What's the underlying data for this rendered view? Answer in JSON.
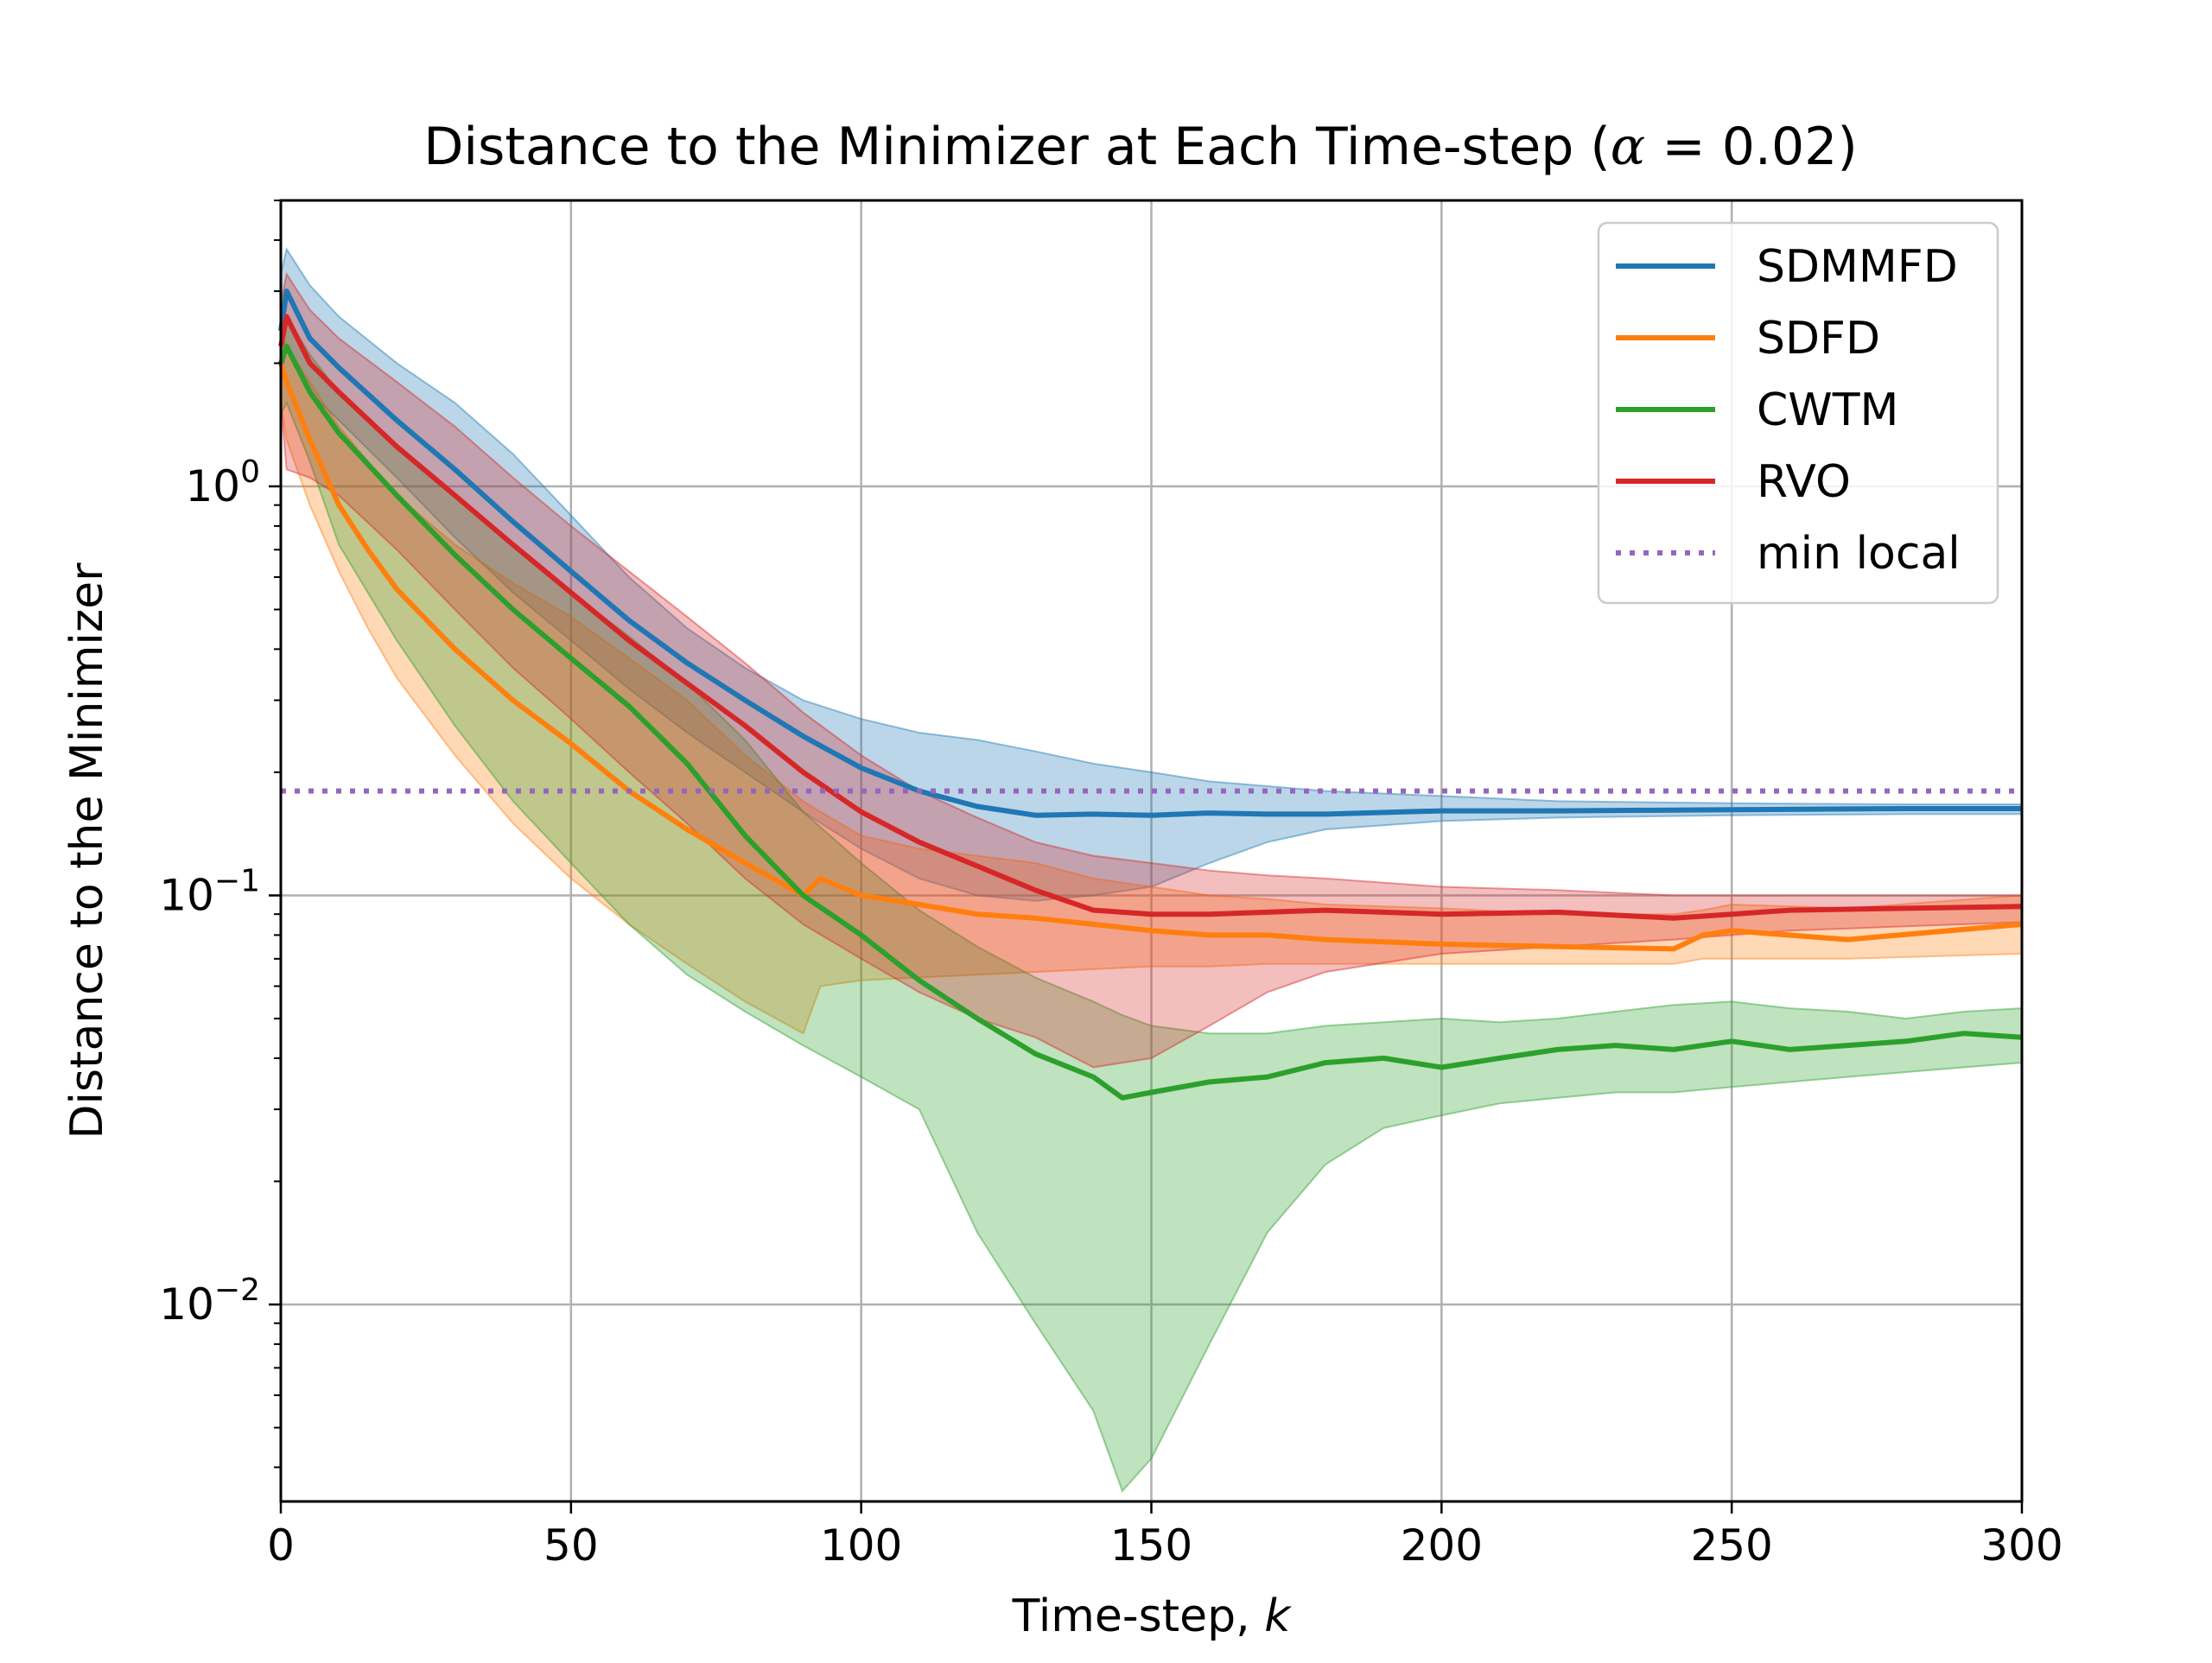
{
  "chart_data": {
    "type": "line",
    "title": "Distance to the Minimizer at Each Time-step (α = 0.02)",
    "title_prefix": "Distance to the Minimizer at Each Time-step (",
    "title_symbol": "α",
    "title_suffix": " = 0.02)",
    "xlabel": "Time-step, k",
    "xlabel_prefix": "Time-step, ",
    "xlabel_symbol": "k",
    "ylabel": "Distance to the Minimizer",
    "xlim": [
      0,
      300
    ],
    "ylim": [
      0.0033,
      5.0
    ],
    "yscale": "log",
    "grid": true,
    "legend_position": "top-right",
    "x_ticks": [
      0,
      50,
      100,
      150,
      200,
      250,
      300
    ],
    "x_tick_labels": [
      "0",
      "50",
      "100",
      "150",
      "200",
      "250",
      "300"
    ],
    "y_ticks": [
      1,
      0.1,
      0.01
    ],
    "y_tick_labels": [
      {
        "base": "10",
        "exp": "0"
      },
      {
        "base": "10",
        "exp": "−1"
      },
      {
        "base": "10",
        "exp": "−2"
      }
    ],
    "series": [
      {
        "name": "SDMMFD",
        "color": "#1f77b4",
        "style": "solid",
        "x": [
          0,
          1,
          5,
          10,
          20,
          30,
          40,
          50,
          60,
          70,
          80,
          90,
          100,
          110,
          120,
          130,
          140,
          150,
          160,
          170,
          180,
          200,
          220,
          250,
          280,
          300
        ],
        "y": [
          2.4,
          3.0,
          2.3,
          1.95,
          1.45,
          1.1,
          0.82,
          0.62,
          0.47,
          0.37,
          0.3,
          0.245,
          0.205,
          0.18,
          0.165,
          0.157,
          0.158,
          0.157,
          0.159,
          0.158,
          0.158,
          0.161,
          0.161,
          0.162,
          0.163,
          0.163
        ],
        "band_upper": [
          3.3,
          3.8,
          3.1,
          2.6,
          2.0,
          1.6,
          1.2,
          0.85,
          0.6,
          0.45,
          0.36,
          0.3,
          0.27,
          0.25,
          0.24,
          0.225,
          0.21,
          0.2,
          0.19,
          0.185,
          0.18,
          0.175,
          0.17,
          0.168,
          0.167,
          0.167
        ],
        "band_lower": [
          1.8,
          2.2,
          1.7,
          1.45,
          1.05,
          0.75,
          0.55,
          0.42,
          0.32,
          0.25,
          0.2,
          0.16,
          0.13,
          0.11,
          0.1,
          0.097,
          0.1,
          0.105,
          0.12,
          0.135,
          0.145,
          0.152,
          0.155,
          0.157,
          0.158,
          0.158
        ]
      },
      {
        "name": "SDFD",
        "color": "#ff7f0e",
        "style": "solid",
        "x": [
          0,
          1,
          5,
          10,
          15,
          20,
          30,
          40,
          50,
          60,
          70,
          80,
          90,
          93,
          100,
          110,
          120,
          130,
          140,
          150,
          160,
          170,
          180,
          200,
          220,
          240,
          245,
          250,
          270,
          300
        ],
        "y": [
          2.0,
          1.8,
          1.3,
          0.9,
          0.7,
          0.56,
          0.4,
          0.3,
          0.235,
          0.18,
          0.145,
          0.12,
          0.1,
          0.11,
          0.1,
          0.095,
          0.09,
          0.088,
          0.085,
          0.082,
          0.08,
          0.08,
          0.078,
          0.076,
          0.075,
          0.074,
          0.08,
          0.082,
          0.078,
          0.085
        ],
        "band_upper": [
          2.4,
          2.2,
          1.8,
          1.4,
          1.15,
          0.95,
          0.72,
          0.58,
          0.48,
          0.38,
          0.3,
          0.22,
          0.17,
          0.16,
          0.14,
          0.13,
          0.125,
          0.12,
          0.11,
          0.105,
          0.1,
          0.098,
          0.095,
          0.093,
          0.09,
          0.09,
          0.092,
          0.095,
          0.093,
          0.1
        ],
        "band_lower": [
          1.6,
          1.3,
          0.9,
          0.62,
          0.45,
          0.34,
          0.22,
          0.15,
          0.11,
          0.085,
          0.068,
          0.055,
          0.046,
          0.06,
          0.062,
          0.063,
          0.064,
          0.065,
          0.066,
          0.067,
          0.067,
          0.068,
          0.068,
          0.068,
          0.068,
          0.068,
          0.07,
          0.07,
          0.07,
          0.072
        ]
      },
      {
        "name": "CWTM",
        "color": "#2ca02c",
        "style": "solid",
        "x": [
          0,
          1,
          5,
          10,
          20,
          30,
          40,
          50,
          60,
          70,
          80,
          90,
          100,
          110,
          120,
          130,
          140,
          145,
          150,
          160,
          170,
          180,
          190,
          200,
          210,
          220,
          230,
          240,
          250,
          260,
          270,
          280,
          290,
          300
        ],
        "y": [
          2.0,
          2.2,
          1.7,
          1.35,
          0.95,
          0.68,
          0.5,
          0.38,
          0.29,
          0.21,
          0.14,
          0.1,
          0.08,
          0.062,
          0.05,
          0.041,
          0.036,
          0.032,
          0.033,
          0.035,
          0.036,
          0.039,
          0.04,
          0.038,
          0.04,
          0.042,
          0.043,
          0.042,
          0.044,
          0.042,
          0.043,
          0.044,
          0.046,
          0.045
        ],
        "band_upper": [
          2.4,
          2.6,
          2.1,
          1.7,
          1.25,
          0.95,
          0.72,
          0.55,
          0.43,
          0.33,
          0.24,
          0.16,
          0.12,
          0.092,
          0.075,
          0.063,
          0.055,
          0.051,
          0.048,
          0.046,
          0.046,
          0.048,
          0.049,
          0.05,
          0.049,
          0.05,
          0.052,
          0.054,
          0.055,
          0.053,
          0.052,
          0.05,
          0.052,
          0.053
        ],
        "band_lower": [
          1.5,
          1.6,
          1.15,
          0.72,
          0.42,
          0.26,
          0.17,
          0.12,
          0.085,
          0.064,
          0.052,
          0.043,
          0.036,
          0.03,
          0.015,
          0.009,
          0.0055,
          0.0035,
          0.0042,
          0.008,
          0.015,
          0.022,
          0.027,
          0.029,
          0.031,
          0.032,
          0.033,
          0.033,
          0.034,
          0.035,
          0.036,
          0.037,
          0.038,
          0.039
        ]
      },
      {
        "name": "RVO",
        "color": "#d62728",
        "style": "solid",
        "x": [
          0,
          1,
          5,
          10,
          20,
          30,
          40,
          50,
          60,
          70,
          80,
          90,
          100,
          110,
          120,
          130,
          140,
          150,
          160,
          170,
          180,
          200,
          220,
          240,
          250,
          260,
          280,
          300
        ],
        "y": [
          2.2,
          2.6,
          2.0,
          1.7,
          1.25,
          0.95,
          0.72,
          0.55,
          0.42,
          0.33,
          0.26,
          0.2,
          0.16,
          0.135,
          0.118,
          0.103,
          0.092,
          0.09,
          0.09,
          0.091,
          0.092,
          0.09,
          0.091,
          0.088,
          0.09,
          0.092,
          0.093,
          0.094
        ],
        "band_upper": [
          2.8,
          3.3,
          2.7,
          2.3,
          1.8,
          1.4,
          1.05,
          0.8,
          0.62,
          0.48,
          0.37,
          0.28,
          0.22,
          0.18,
          0.155,
          0.135,
          0.125,
          0.12,
          0.115,
          0.112,
          0.11,
          0.105,
          0.103,
          0.1,
          0.1,
          0.1,
          0.1,
          0.1
        ],
        "band_lower": [
          1.6,
          1.1,
          1.05,
          0.95,
          0.7,
          0.5,
          0.36,
          0.27,
          0.2,
          0.15,
          0.11,
          0.085,
          0.07,
          0.058,
          0.05,
          0.045,
          0.038,
          0.04,
          0.048,
          0.058,
          0.065,
          0.072,
          0.075,
          0.078,
          0.08,
          0.082,
          0.084,
          0.086
        ]
      },
      {
        "name": "min local",
        "color": "#9467bd",
        "style": "dotted",
        "x": [
          0,
          300
        ],
        "y": [
          0.18,
          0.18
        ]
      }
    ]
  }
}
